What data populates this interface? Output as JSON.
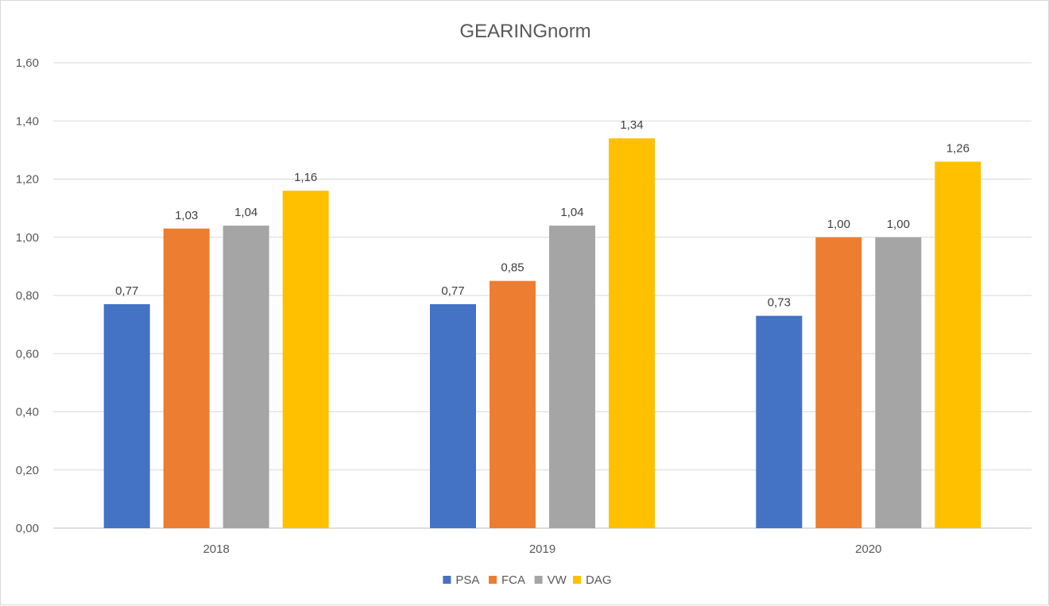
{
  "chart_data": {
    "type": "bar",
    "title": "GEARINGnorm",
    "xlabel": "",
    "ylabel": "",
    "categories": [
      "2018",
      "2019",
      "2020"
    ],
    "series": [
      {
        "name": "PSA",
        "color": "#4472C4",
        "values": [
          0.77,
          0.77,
          0.73
        ],
        "labels": [
          "0,77",
          "0,77",
          "0,73"
        ]
      },
      {
        "name": "FCA",
        "color": "#ED7D31",
        "values": [
          1.03,
          0.85,
          1.0
        ],
        "labels": [
          "1,03",
          "0,85",
          "1,00"
        ]
      },
      {
        "name": "VW",
        "color": "#A5A5A5",
        "values": [
          1.04,
          1.04,
          1.0
        ],
        "labels": [
          "1,04",
          "1,04",
          "1,00"
        ]
      },
      {
        "name": "DAG",
        "color": "#FFC000",
        "values": [
          1.16,
          1.34,
          1.26
        ],
        "labels": [
          "1,16",
          "1,34",
          "1,26"
        ]
      }
    ],
    "ylim": [
      0,
      1.6
    ],
    "yticks": [
      "0,00",
      "0,20",
      "0,40",
      "0,60",
      "0,80",
      "1,00",
      "1,20",
      "1,40",
      "1,60"
    ],
    "grid": true,
    "legend_position": "bottom"
  }
}
